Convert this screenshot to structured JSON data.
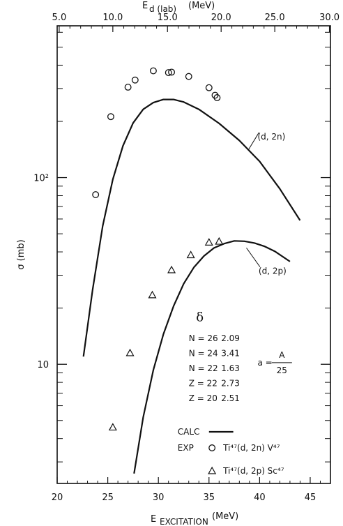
{
  "chart_data": {
    "type": "scatter",
    "xlabel": "E_EXCITATION (MeV)",
    "xlabel_main": "E",
    "xlabel_sub": "EXCITATION",
    "xlabel_unit": "(MeV)",
    "xlim": [
      20,
      47
    ],
    "xticks": [
      20,
      25,
      30,
      35,
      40,
      45
    ],
    "top_axis": {
      "label_main": "E",
      "label_sub": "d (lab)",
      "label_unit": "(MeV)",
      "ticks": [
        {
          "value": 5.0,
          "label": "5.0",
          "x": 20.2
        },
        {
          "value": 10.0,
          "label": "10.0",
          "x": 25.5
        },
        {
          "value": 15.0,
          "label": "15.0",
          "x": 30.9
        },
        {
          "value": 20.0,
          "label": "20.0",
          "x": 36.2
        },
        {
          "value": 25.0,
          "label": "25.0",
          "x": 41.5
        },
        {
          "value": 30.0,
          "label": "30.0",
          "x": 46.9
        }
      ]
    },
    "ylabel": "σ (mb)",
    "yscale": "log",
    "ylim": [
      2.3,
      650
    ],
    "yticks": [
      {
        "value": 10,
        "label": "10"
      },
      {
        "value": 100,
        "label": "10²"
      }
    ],
    "series": [
      {
        "name": "Ti⁴⁷(d,2n) V⁴⁷",
        "marker": "circle",
        "points": [
          [
            23.8,
            81
          ],
          [
            25.3,
            212
          ],
          [
            27.0,
            305
          ],
          [
            27.7,
            333
          ],
          [
            29.5,
            373
          ],
          [
            31.0,
            365
          ],
          [
            31.3,
            367
          ],
          [
            33.0,
            348
          ],
          [
            35.0,
            303
          ],
          [
            35.6,
            276
          ],
          [
            35.8,
            268
          ]
        ]
      },
      {
        "name": "Ti⁴⁷(d,2p) Sc⁴⁷",
        "marker": "triangle",
        "points": [
          [
            25.5,
            4.6
          ],
          [
            27.2,
            11.5
          ],
          [
            29.4,
            23.5
          ],
          [
            31.3,
            32
          ],
          [
            33.2,
            38.5
          ],
          [
            35.0,
            45
          ],
          [
            36.0,
            45.5
          ]
        ]
      },
      {
        "name": "(d,2n)",
        "type": "line",
        "points": [
          [
            22.6,
            11
          ],
          [
            23.5,
            25
          ],
          [
            24.5,
            55
          ],
          [
            25.5,
            98
          ],
          [
            26.5,
            148
          ],
          [
            27.5,
            196
          ],
          [
            28.5,
            232
          ],
          [
            29.5,
            252
          ],
          [
            30.5,
            262
          ],
          [
            31.5,
            262
          ],
          [
            32.5,
            254
          ],
          [
            34,
            232
          ],
          [
            36,
            195
          ],
          [
            38,
            158
          ],
          [
            40,
            122
          ],
          [
            42,
            87
          ],
          [
            44,
            59
          ]
        ]
      },
      {
        "name": "(d,2p)",
        "type": "line",
        "points": [
          [
            27.6,
            2.6
          ],
          [
            28.5,
            5.2
          ],
          [
            29.5,
            9.3
          ],
          [
            30.5,
            14.5
          ],
          [
            31.5,
            20.5
          ],
          [
            32.5,
            27
          ],
          [
            33.5,
            33
          ],
          [
            34.5,
            38
          ],
          [
            35.5,
            42
          ],
          [
            36.5,
            44.3
          ],
          [
            37.5,
            45.8
          ],
          [
            38.5,
            45.6
          ],
          [
            39.5,
            44.6
          ],
          [
            40.5,
            42.8
          ],
          [
            41.5,
            40.3
          ],
          [
            43.0,
            35.5
          ]
        ]
      }
    ],
    "curve_labels": [
      {
        "text": "(d, 2n)",
        "x": 39.8,
        "y": 160,
        "arrow_to": [
          38.9,
          141
        ]
      },
      {
        "text": "(d, 2p)",
        "x": 39.9,
        "y": 30.5,
        "arrow_to": [
          38.7,
          42
        ]
      }
    ],
    "delta_table": {
      "symbol": "δ",
      "rows": [
        {
          "label": "N = 26",
          "value": "2.09"
        },
        {
          "label": "N = 24",
          "value": "3.41"
        },
        {
          "label": "N = 22",
          "value": "1.63"
        },
        {
          "label": "Z = 22",
          "value": "2.73"
        },
        {
          "label": "Z = 20",
          "value": "2.51"
        }
      ]
    },
    "a_formula": {
      "lhs": "a =",
      "numerator": "A",
      "denominator": "25"
    },
    "legend": {
      "placement": "bottom-right",
      "calc_label": "CALC",
      "exp_label": "EXP",
      "circle_text": "Ti⁴⁷(d, 2n) V⁴⁷",
      "triangle_text": "Ti⁴⁷(d, 2p) Sc⁴⁷"
    }
  }
}
